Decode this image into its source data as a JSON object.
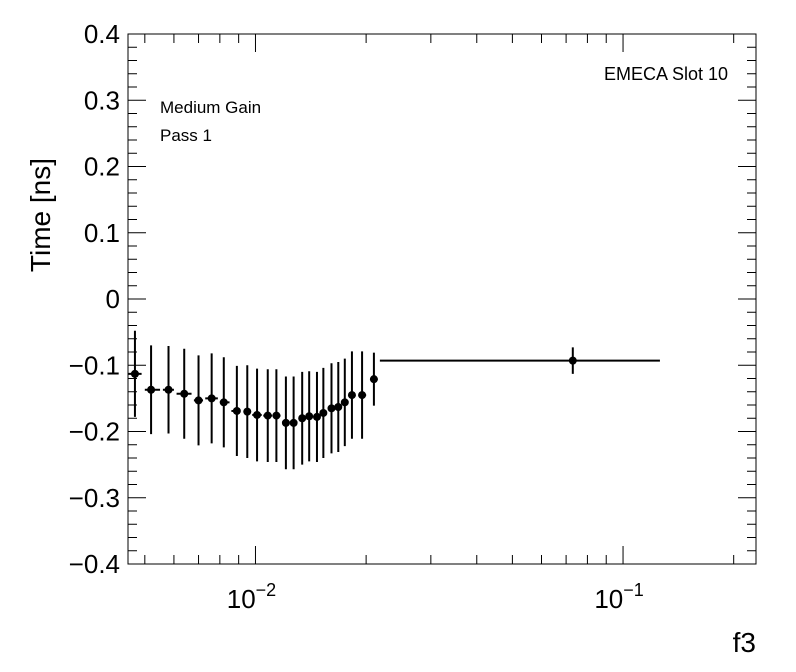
{
  "chart_data": {
    "type": "scatter",
    "ylabel": "Time [ns]",
    "xlabel": "f3",
    "xscale": "log",
    "xlim": [
      0.0045,
      0.23
    ],
    "ylim": [
      -0.4,
      0.4
    ],
    "y_ticks": [
      "0.4",
      "0.3",
      "0.2",
      "0.1",
      "0",
      "−0.1",
      "−0.2",
      "−0.3",
      "−0.4"
    ],
    "x_ticks": [
      {
        "value": 0.01,
        "base": "10",
        "exp": "−2"
      },
      {
        "value": 0.1,
        "base": "10",
        "exp": "−1"
      }
    ],
    "annotations": {
      "slot": "EMECA Slot 10",
      "gain": "Medium Gain",
      "pass": "Pass 1"
    },
    "color": "#000000",
    "points": [
      {
        "x": 0.0047,
        "y": -0.113,
        "xlo": 0.0045,
        "xhi": 0.0049,
        "err": 0.065
      },
      {
        "x": 0.0052,
        "y": -0.137,
        "xlo": 0.005,
        "xhi": 0.0055,
        "err": 0.067
      },
      {
        "x": 0.0058,
        "y": -0.137,
        "xlo": 0.0056,
        "xhi": 0.006,
        "err": 0.066
      },
      {
        "x": 0.0064,
        "y": -0.143,
        "xlo": 0.0061,
        "xhi": 0.0067,
        "err": 0.068
      },
      {
        "x": 0.007,
        "y": -0.153,
        "xlo": 0.0068,
        "xhi": 0.0072,
        "err": 0.068
      },
      {
        "x": 0.0076,
        "y": -0.15,
        "xlo": 0.0073,
        "xhi": 0.0079,
        "err": 0.068
      },
      {
        "x": 0.0082,
        "y": -0.156,
        "xlo": 0.008,
        "xhi": 0.0085,
        "err": 0.068
      },
      {
        "x": 0.0089,
        "y": -0.169,
        "xlo": 0.0086,
        "xhi": 0.0091,
        "err": 0.068
      },
      {
        "x": 0.0095,
        "y": -0.17,
        "xlo": 0.0093,
        "xhi": 0.0097,
        "err": 0.07
      },
      {
        "x": 0.0101,
        "y": -0.175,
        "xlo": 0.0098,
        "xhi": 0.0104,
        "err": 0.07
      },
      {
        "x": 0.0108,
        "y": -0.176,
        "xlo": 0.0105,
        "xhi": 0.0111,
        "err": 0.07
      },
      {
        "x": 0.0114,
        "y": -0.176,
        "xlo": 0.0112,
        "xhi": 0.0117,
        "err": 0.07
      },
      {
        "x": 0.0121,
        "y": -0.187,
        "xlo": 0.0119,
        "xhi": 0.0123,
        "err": 0.07
      },
      {
        "x": 0.0127,
        "y": -0.187,
        "xlo": 0.0125,
        "xhi": 0.013,
        "err": 0.07
      },
      {
        "x": 0.0134,
        "y": -0.18,
        "xlo": 0.0132,
        "xhi": 0.0136,
        "err": 0.07
      },
      {
        "x": 0.014,
        "y": -0.177,
        "xlo": 0.0138,
        "xhi": 0.0143,
        "err": 0.068
      },
      {
        "x": 0.0147,
        "y": -0.178,
        "xlo": 0.0145,
        "xhi": 0.0149,
        "err": 0.068
      },
      {
        "x": 0.0153,
        "y": -0.172,
        "xlo": 0.0151,
        "xhi": 0.0156,
        "err": 0.068
      },
      {
        "x": 0.0161,
        "y": -0.165,
        "xlo": 0.0158,
        "xhi": 0.0164,
        "err": 0.068
      },
      {
        "x": 0.0168,
        "y": -0.163,
        "xlo": 0.0166,
        "xhi": 0.0171,
        "err": 0.068
      },
      {
        "x": 0.0175,
        "y": -0.156,
        "xlo": 0.0173,
        "xhi": 0.0178,
        "err": 0.066
      },
      {
        "x": 0.0183,
        "y": -0.145,
        "xlo": 0.018,
        "xhi": 0.0187,
        "err": 0.066
      },
      {
        "x": 0.0195,
        "y": -0.145,
        "xlo": 0.0191,
        "xhi": 0.02,
        "err": 0.066
      },
      {
        "x": 0.021,
        "y": -0.121,
        "xlo": 0.0205,
        "xhi": 0.0215,
        "err": 0.04
      },
      {
        "x": 0.073,
        "y": -0.093,
        "xlo": 0.0218,
        "xhi": 0.126,
        "err": 0.02
      }
    ]
  }
}
